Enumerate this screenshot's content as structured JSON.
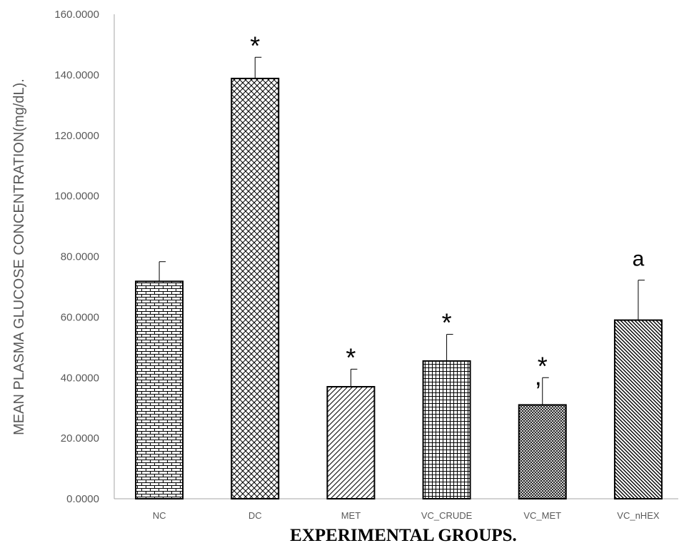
{
  "chart_data": {
    "type": "bar",
    "title": "",
    "xlabel": "EXPERIMENTAL GROUPS.",
    "ylabel": "MEAN PLASMA GLUCOSE CONCENTRATION(mg/dL).",
    "ylim": [
      0,
      160
    ],
    "yticks": [
      "0.0000",
      "20.0000",
      "40.0000",
      "60.0000",
      "80.0000",
      "100.0000",
      "120.0000",
      "140.0000",
      "160.0000"
    ],
    "categories": [
      "NC",
      "DC",
      "MET",
      "VC_CRUDE",
      "VC_MET",
      "VC_nHEX"
    ],
    "values": [
      71.8,
      138.8,
      37.0,
      45.5,
      31.0,
      59.0
    ],
    "errors": [
      6.5,
      7.0,
      5.8,
      8.8,
      9.0,
      13.2
    ],
    "annotations": [
      "",
      "*",
      "*",
      "*",
      "*\n,",
      "a"
    ],
    "patterns": [
      "brick",
      "diag-cross",
      "diag-up",
      "small-grid",
      "dense-dots",
      "diag-down"
    ],
    "grid": false,
    "legend": "none",
    "colors": {
      "bar_stroke": "#000000",
      "axis": "#a6a6a6",
      "text": "#595959"
    }
  }
}
